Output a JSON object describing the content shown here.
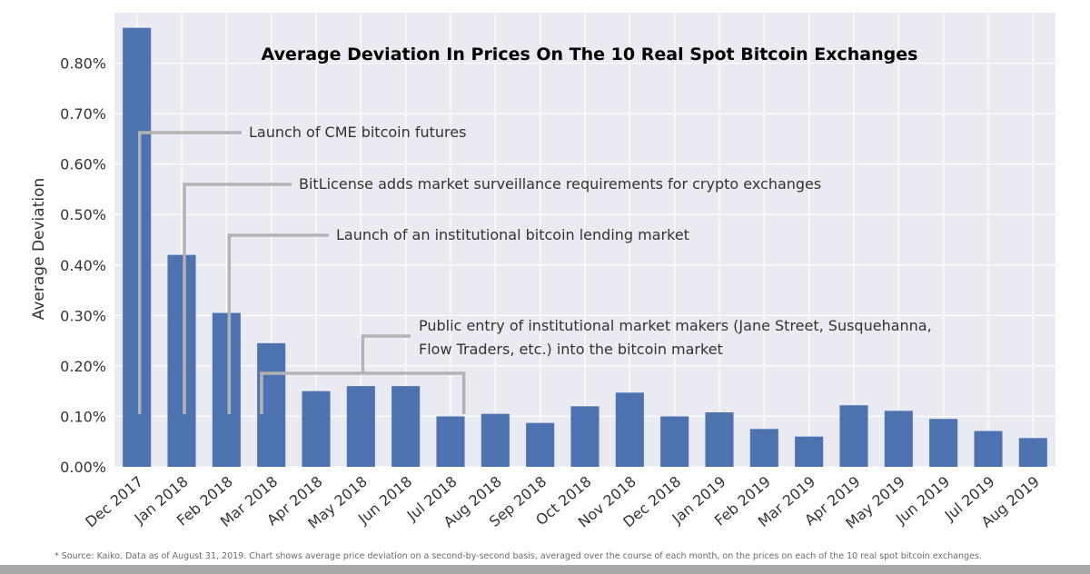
{
  "chart_data": {
    "type": "bar",
    "title": "Average Deviation In Prices On The 10 Real Spot Bitcoin Exchanges",
    "xlabel": "",
    "ylabel": "Average Deviation",
    "ylim": [
      0,
      0.9
    ],
    "yticks": [
      0.0,
      0.1,
      0.2,
      0.3,
      0.4,
      0.5,
      0.6,
      0.7,
      0.8
    ],
    "ytick_labels": [
      "0.00%",
      "0.10%",
      "0.20%",
      "0.30%",
      "0.40%",
      "0.50%",
      "0.60%",
      "0.70%",
      "0.80%"
    ],
    "categories": [
      "Dec 2017",
      "Jan 2018",
      "Feb 2018",
      "Mar 2018",
      "Apr 2018",
      "May 2018",
      "Jun 2018",
      "Jul 2018",
      "Aug 2018",
      "Sep 2018",
      "Oct 2018",
      "Nov 2018",
      "Dec 2018",
      "Jan 2019",
      "Feb 2019",
      "Mar 2019",
      "Apr 2019",
      "May 2019",
      "Jun 2019",
      "Jul 2019",
      "Aug 2019"
    ],
    "values": [
      0.87,
      0.42,
      0.305,
      0.245,
      0.15,
      0.16,
      0.16,
      0.1,
      0.105,
      0.087,
      0.12,
      0.147,
      0.1,
      0.108,
      0.075,
      0.06,
      0.122,
      0.111,
      0.095,
      0.071,
      0.057
    ],
    "bar_color": "#4c72b0",
    "background_color": "#eaeaf2",
    "grid": true,
    "annotations": [
      {
        "text": [
          "Launch of CME bitcoin futures"
        ],
        "from_category": 0
      },
      {
        "text": [
          "BitLicense adds market surveillance requirements for crypto exchanges"
        ],
        "from_category": 1
      },
      {
        "text": [
          "Launch of an institutional bitcoin lending market"
        ],
        "from_category": 2
      },
      {
        "text": [
          "Public entry of institutional market makers (Jane Street, Susquehanna,",
          "Flow Traders, etc.) into the bitcoin market"
        ],
        "from_category": 3,
        "to_category": 7
      }
    ],
    "annotation_color": "#b3b3b3"
  },
  "footnote": "* Source: Kaiko. Data as of August 31, 2019.  Chart shows average price deviation on a second-by-second basis, averaged over the course of each month, on the prices on each of the 10 real spot bitcoin exchanges."
}
